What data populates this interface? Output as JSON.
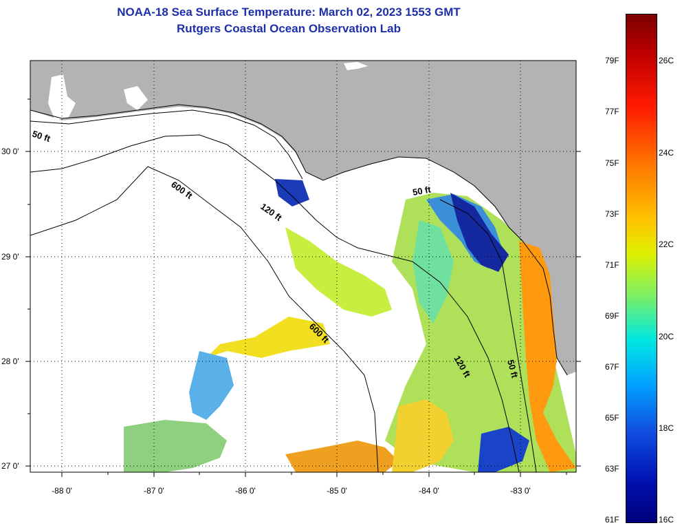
{
  "title": {
    "line1": "NOAA-18 Sea Surface Temperature:  March 02, 2023 1553 GMT",
    "line2": "Rutgers Coastal Ocean Observation Lab"
  },
  "axes": {
    "lat_labels": [
      "30 0'",
      "29 0'",
      "28 0'",
      "27 0'"
    ],
    "lon_labels": [
      "-88 0'",
      "-87 0'",
      "-86 0'",
      "-85 0'",
      "-84 0'",
      "-83 0'"
    ]
  },
  "contours": {
    "c50a": "50 ft",
    "c600a": "600 ft",
    "c120a": "120 ft",
    "c50b": "50 ft",
    "c600b": "600 ft",
    "c120b": "120 ft",
    "c50c": "50 ft"
  },
  "colorbar": {
    "fahrenheit": [
      "79F",
      "77F",
      "75F",
      "73F",
      "71F",
      "69F",
      "67F",
      "65F",
      "63F",
      "61F"
    ],
    "celsius": [
      "26C",
      "24C",
      "22C",
      "20C",
      "18C",
      "16C"
    ]
  },
  "colors": {
    "land": "#b3b3b3",
    "no_data": "#ffffff",
    "title": "#1c2fa8"
  }
}
